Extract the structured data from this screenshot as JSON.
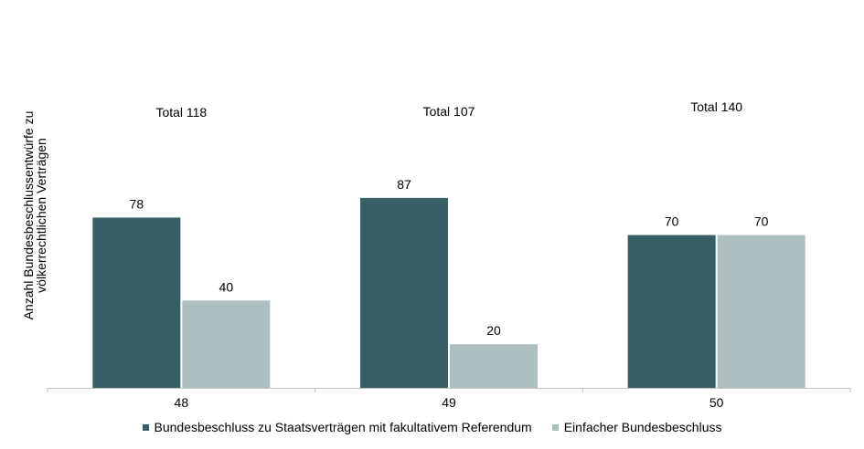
{
  "chart_data": {
    "type": "bar",
    "title": "",
    "xlabel": "",
    "ylabel": "Anzahl Bundesbeschlussentwürfe zu völkerrechtlichen Verträgen",
    "categories": [
      "48",
      "49",
      "50"
    ],
    "series": [
      {
        "name": "Bundesbeschluss zu Staatsverträgen mit fakultativem Referendum",
        "color": "#376066",
        "values": [
          78,
          87,
          70
        ]
      },
      {
        "name": "Einfacher Bundesbeschluss",
        "color": "#adbfc1",
        "values": [
          40,
          20,
          70
        ]
      }
    ],
    "annotations": [
      "Total 118",
      "Total 107",
      "Total 140"
    ],
    "ylim": [
      0,
      125
    ],
    "grid": false,
    "legend": "bottom"
  }
}
